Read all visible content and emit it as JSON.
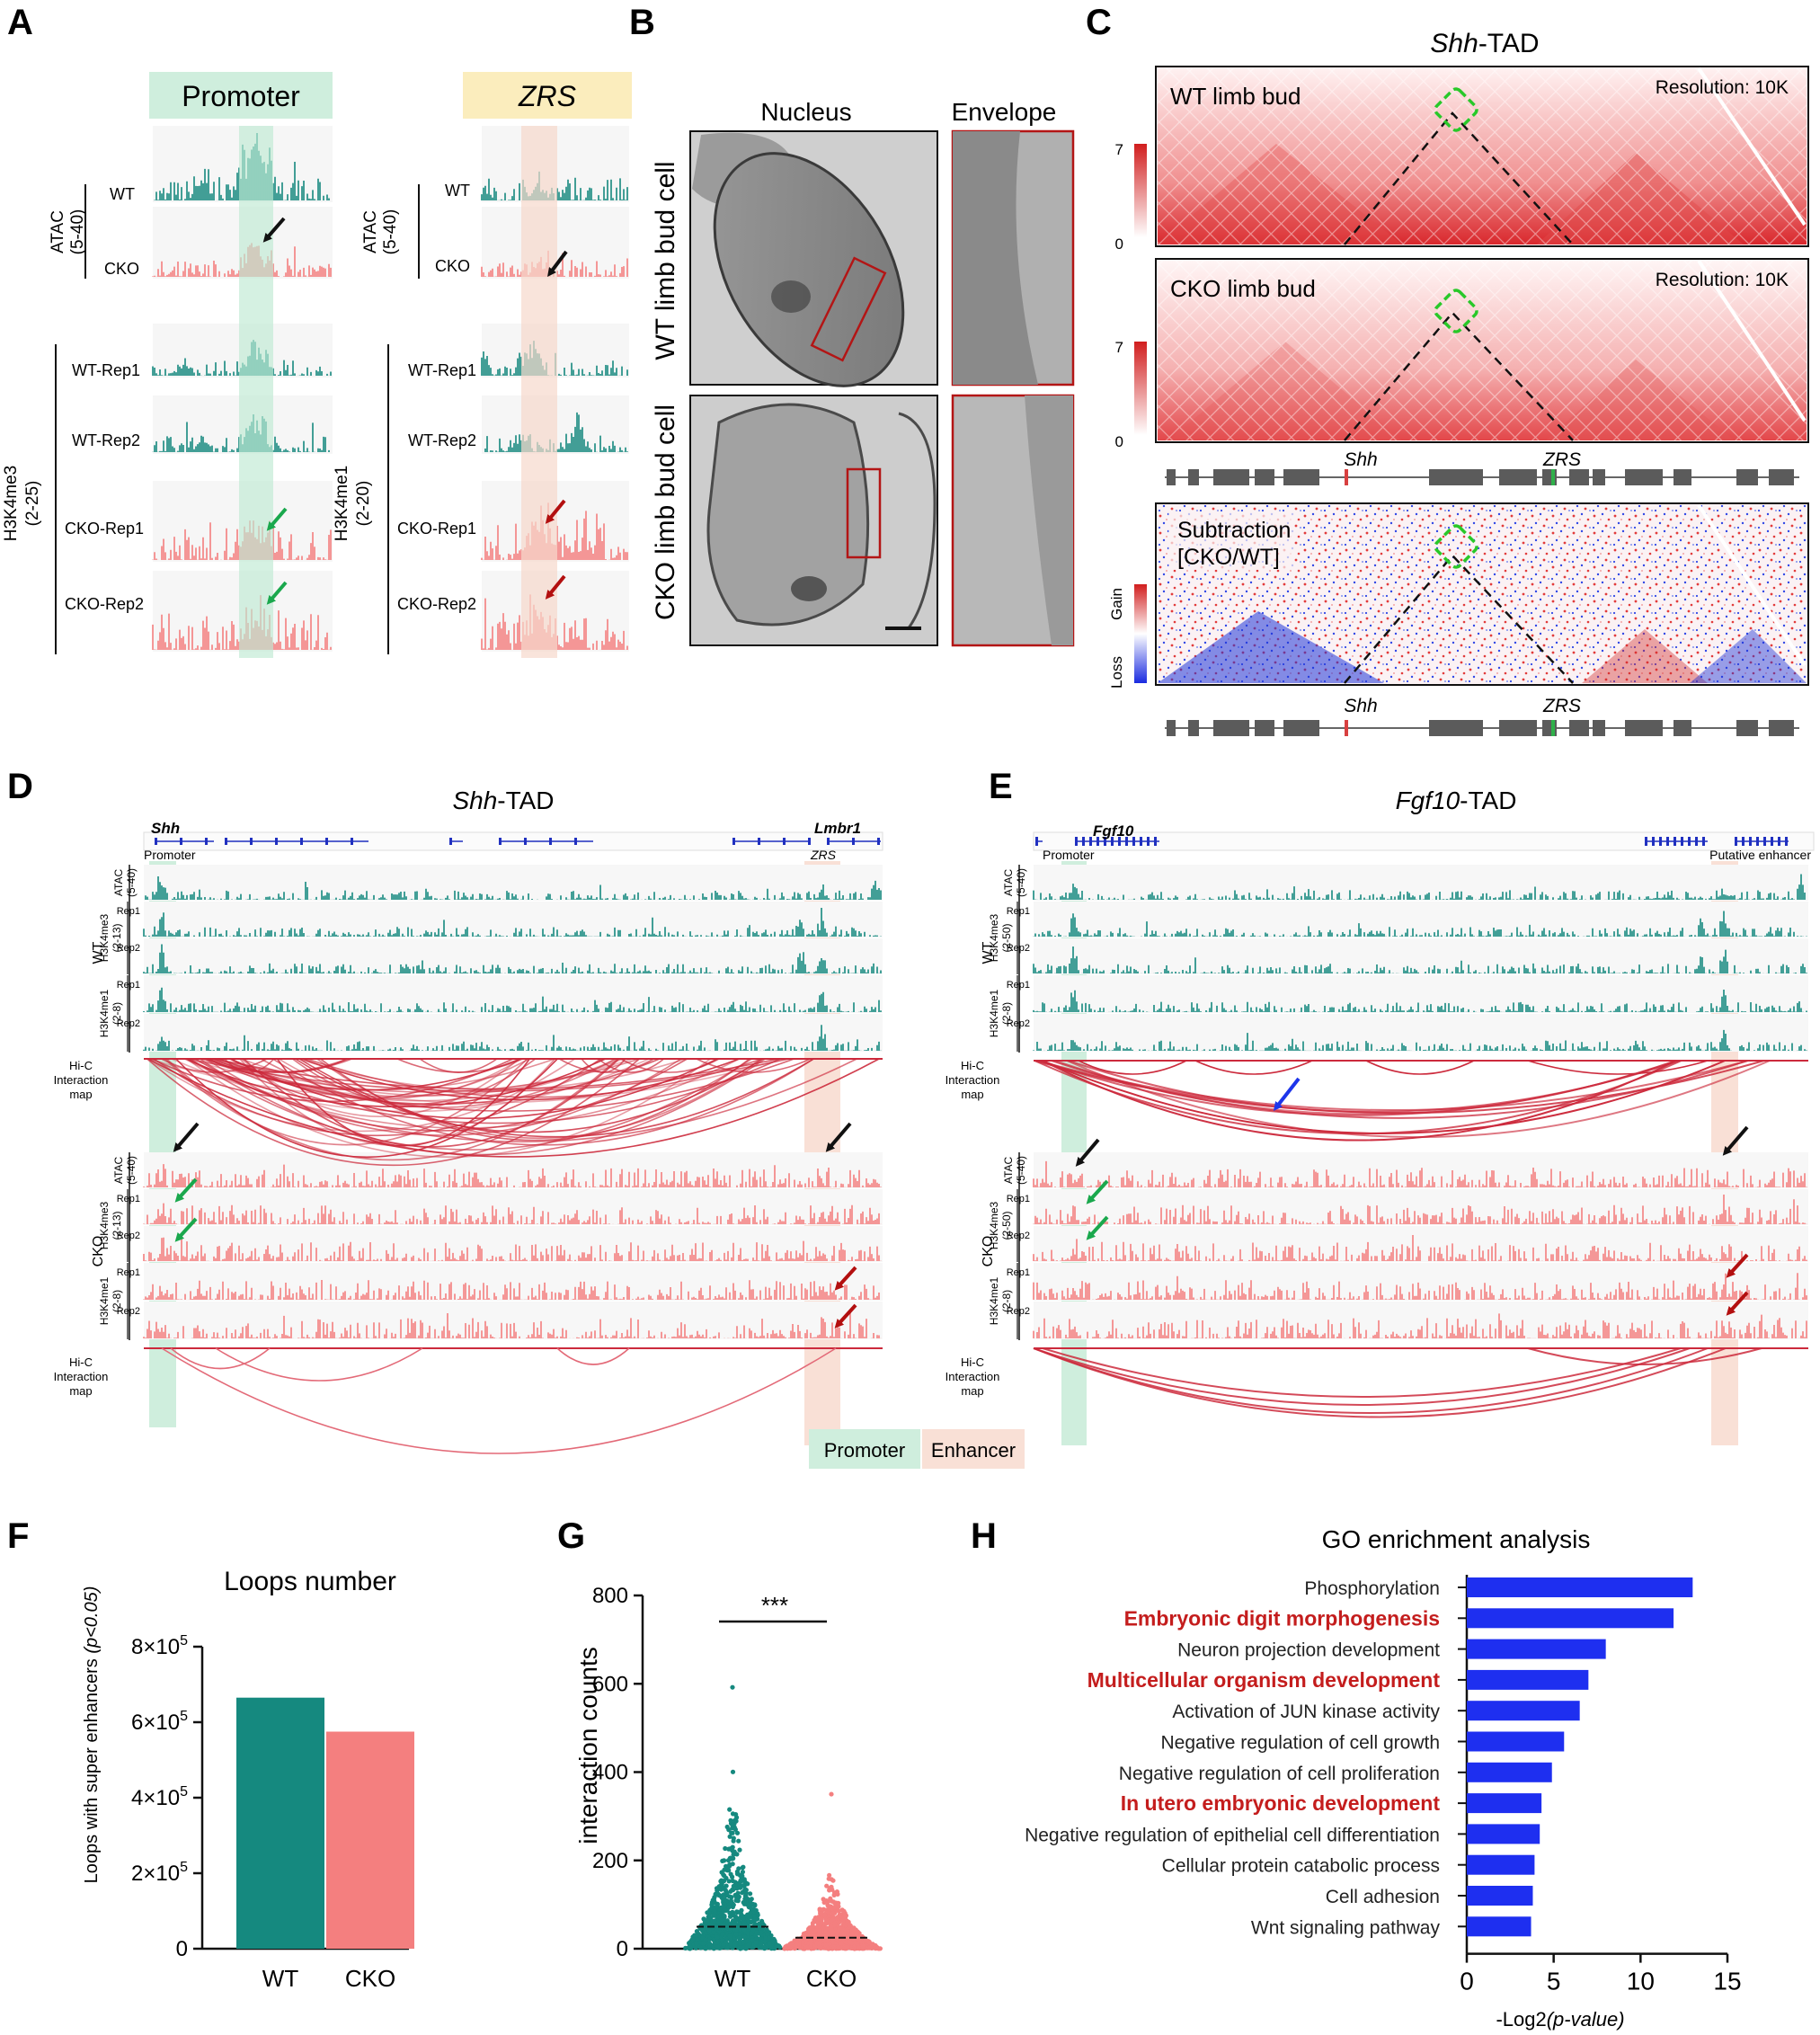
{
  "panel_letters": [
    "A",
    "B",
    "C",
    "D",
    "E",
    "F",
    "G",
    "H"
  ],
  "colors": {
    "wt": "#15897f",
    "cko": "#f47f7f",
    "promoter_bg": "#cfeedd",
    "enhancer_bg": "#f9e0d6",
    "zrs_bg": "#fbedbd",
    "go_bar": "#1e2ff0",
    "go_highlight": "#c41d1d",
    "arc": "#cc2a3c",
    "arrow_black": "#111111",
    "arrow_green": "#1aa84d",
    "arrow_red": "#b30f0f",
    "arrow_blue": "#1d35ea"
  },
  "panelA": {
    "left": {
      "header": "Promoter",
      "atac_group": "ATAC",
      "atac_range": "(5-40)",
      "atac_rows": [
        "WT",
        "CKO"
      ],
      "hist_group": "H3K4me3",
      "hist_range": "(2-25)",
      "hist_rows": [
        "WT-Rep1",
        "WT-Rep2",
        "CKO-Rep1",
        "CKO-Rep2"
      ]
    },
    "right": {
      "header": "ZRS",
      "atac_group": "ATAC",
      "atac_range": "(5-40)",
      "atac_rows": [
        "WT",
        "CKO"
      ],
      "hist_group": "H3K4me1",
      "hist_range": "(2-20)",
      "hist_rows": [
        "WT-Rep1",
        "WT-Rep2",
        "CKO-Rep1",
        "CKO-Rep2"
      ]
    }
  },
  "panelB": {
    "col_titles": [
      "Nucleus",
      "Envelope"
    ],
    "row_labels": [
      "WT limb bud cell",
      "CKO limb bud cell"
    ]
  },
  "panelC": {
    "title_italic": "Shh",
    "title_rest": "-TAD",
    "maps": [
      {
        "label": "WT limb bud",
        "resolution": "Resolution: 10K",
        "scale_max": "7",
        "scale_min": "0"
      },
      {
        "label": "CKO limb bud",
        "resolution": "Resolution: 10K",
        "scale_max": "7",
        "scale_min": "0"
      }
    ],
    "subtraction": {
      "line1": "Subtraction",
      "line2": "[CKO/WT]",
      "gain": "Gain",
      "loss": "Loss"
    },
    "gene_labels": [
      "Shh",
      "ZRS"
    ]
  },
  "panelD": {
    "title_italic": "Shh",
    "title_rest": "-TAD",
    "gene_left": "Shh",
    "gene_right": "Lmbr1",
    "region_left": "Promoter",
    "region_right": "ZRS",
    "groups": [
      "WT",
      "CKO"
    ],
    "track_labels": {
      "atac": "ATAC",
      "atac_range": "(5-40)",
      "me3": "H3K4me3",
      "me3_range": "(2-13)",
      "me1": "H3K4me1",
      "me1_range": "(2-8)",
      "rep1": "Rep1",
      "rep2": "Rep2"
    },
    "hic_label": [
      "Hi-C",
      "Interaction",
      "map"
    ],
    "legend": [
      "Promoter",
      "Enhancer"
    ]
  },
  "panelE": {
    "title_italic": "Fgf10",
    "title_rest": "-TAD",
    "gene_left": "Fgf10",
    "region_left": "Promoter",
    "region_right": "Putative enhancer",
    "groups": [
      "WT",
      "CKO"
    ],
    "track_labels": {
      "atac": "ATAC",
      "atac_range": "(5-40)",
      "me3": "H3K4me3",
      "me3_range": "(2-50)",
      "me1": "H3K4me1",
      "me1_range": "(2-8)",
      "rep1": "Rep1",
      "rep2": "Rep2"
    },
    "hic_label": [
      "Hi-C",
      "Interaction",
      "map"
    ]
  },
  "chart_data": [
    {
      "id": "F",
      "type": "bar",
      "title": "Loops number",
      "categories": [
        "WT",
        "CKO"
      ],
      "values": [
        665000,
        575000
      ],
      "ylabel": "Loops with super enhancers",
      "ylabel_italic": "(p<0.05)",
      "ylim": [
        0,
        800000
      ],
      "tick_labels": [
        "0",
        "2×10",
        "4×10",
        "6×10",
        "8×10"
      ],
      "tick_exponent": "5"
    },
    {
      "id": "G",
      "type": "scatter",
      "title": "",
      "categories": [
        "WT",
        "CKO"
      ],
      "medians": [
        50,
        25
      ],
      "max_values": [
        592,
        350
      ],
      "ylabel": "interaction counts",
      "ylim": [
        0,
        800
      ],
      "tick_labels": [
        "0",
        "200",
        "400",
        "600",
        "800"
      ],
      "significance": "***"
    },
    {
      "id": "H",
      "type": "bar",
      "title": "GO enrichment analysis",
      "orientation": "horizontal",
      "categories": [
        "Phosphorylation",
        "Embryonic digit morphogenesis",
        "Neuron projection development",
        "Multicellular organism development",
        "Activation of JUN kinase activity",
        "Negative regulation of cell growth",
        "Negative regulation of cell proliferation",
        "In utero embryonic development",
        "Negative regulation of epithelial cell differentiation",
        "Cellular protein catabolic process",
        "Cell adhesion",
        "Wnt signaling pathway"
      ],
      "values": [
        13,
        11.9,
        8,
        7,
        6.5,
        5.6,
        4.9,
        4.3,
        4.2,
        3.9,
        3.8,
        3.7
      ],
      "highlighted": [
        1,
        3,
        7
      ],
      "xlim": [
        0,
        15
      ],
      "tick_labels": [
        "0",
        "5",
        "10",
        "15"
      ],
      "xlabel_prefix": "-Log2",
      "xlabel_italic": "(p-value)"
    }
  ]
}
